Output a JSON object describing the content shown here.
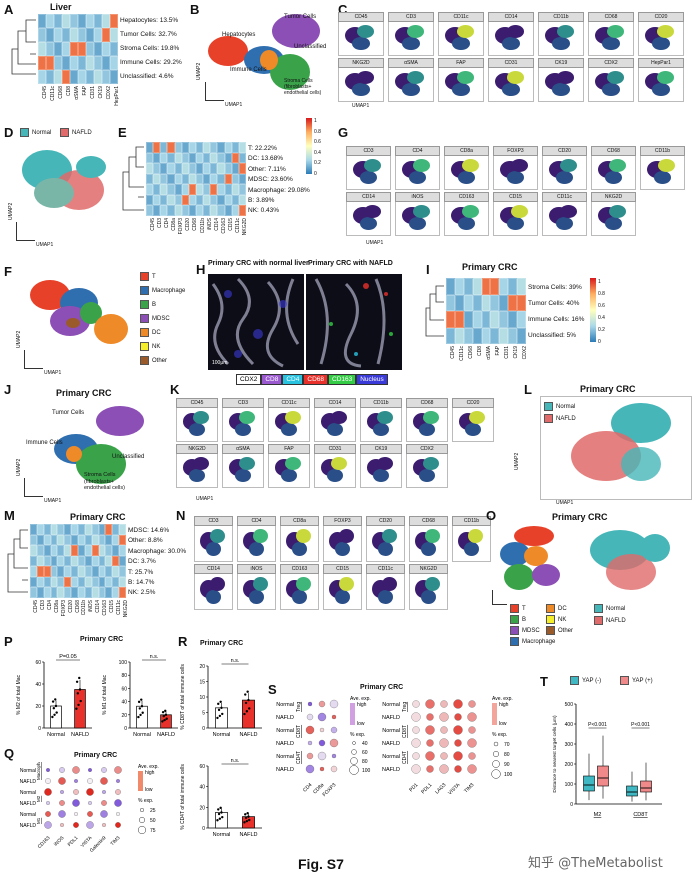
{
  "panelA": {
    "label": "A",
    "title": "Liver",
    "annotations": [
      "Hepatocytes: 13.5%",
      "Tumor Cells: 32.7%",
      "Stroma Cells: 19.8%",
      "Immune Cells: 29.2%",
      "Unclassified: 4.6%"
    ],
    "markers": [
      "CD45",
      "CD11c",
      "CD68",
      "CD8",
      "αSMA",
      "FAP",
      "CD31",
      "CK19",
      "CDX2",
      "HepPar1"
    ]
  },
  "panelB": {
    "label": "B",
    "labels": [
      "Tumor Cells",
      "Hepatocytes",
      "Unclassified",
      "Immune Cells",
      "Stroma Cells\n(fibroblasts+\nendothelial cells)"
    ],
    "xaxis": "UMAP1",
    "yaxis": "UMAP2"
  },
  "panelC": {
    "label": "C",
    "tiles": [
      "CD45",
      "CD3",
      "CD11c",
      "CD14",
      "CD11b",
      "CD68",
      "CD20",
      "NKG2D",
      "αSMA",
      "FAP",
      "CD31",
      "CK19",
      "CDX2",
      "HepPar1"
    ],
    "xaxis": "UMAP1",
    "yaxis": "UMAP2"
  },
  "panelD": {
    "label": "D",
    "legend": [
      "Normal",
      "NAFLD"
    ],
    "xaxis": "UMAP1",
    "yaxis": "UMAP2",
    "colors": {
      "normal": "#46b6b8",
      "nafld": "#e16a6a"
    }
  },
  "panelE": {
    "label": "E",
    "annotations": [
      "T: 22.22%",
      "DC: 13.68%",
      "Other: 7.11%",
      "MDSC: 23.60%",
      "Macrophage: 29.08%",
      "B: 3.89%",
      "NK: 0.43%"
    ],
    "markers": [
      "CD45",
      "CD3",
      "CD4",
      "CD8a",
      "FOXP3",
      "CD20",
      "CD68",
      "CD11b",
      "iNOS",
      "CD14",
      "CD163",
      "CD15",
      "CD11c",
      "NKG2D"
    ],
    "colorbar": [
      "1",
      "0.8",
      "0.6",
      "0.4",
      "0.2",
      "0"
    ]
  },
  "panelF": {
    "label": "F",
    "legend": [
      {
        "name": "T",
        "color": "#e8412a"
      },
      {
        "name": "Macrophage",
        "color": "#2f6fb0"
      },
      {
        "name": "B",
        "color": "#3aa34a"
      },
      {
        "name": "MDSC",
        "color": "#8c4fb5"
      },
      {
        "name": "DC",
        "color": "#ef8a28"
      },
      {
        "name": "NK",
        "color": "#f5ee2a"
      },
      {
        "name": "Other",
        "color": "#9b5a2a"
      }
    ],
    "xaxis": "UMAP1",
    "yaxis": "UMAP2"
  },
  "panelG": {
    "label": "G",
    "tiles": [
      "CD3",
      "CD4",
      "CD8a",
      "FOXP3",
      "CD20",
      "CD68",
      "CD11b",
      "CD14",
      "iNOS",
      "CD163",
      "CD15",
      "CD11c",
      "NKG2D"
    ],
    "xaxis": "UMAP1",
    "yaxis": "UMAP2"
  },
  "panelH": {
    "label": "H",
    "left_title": "Primary CRC with normal liver",
    "right_title": "Primary CRC with NAFLD",
    "scale": "100μm",
    "legend": [
      {
        "name": "CDX2",
        "color": "#ffffff"
      },
      {
        "name": "CD8",
        "color": "#9b59d0"
      },
      {
        "name": "CD4",
        "color": "#29c3e0"
      },
      {
        "name": "CD68",
        "color": "#e8312a"
      },
      {
        "name": "CD163",
        "color": "#33cc44"
      },
      {
        "name": "Nucleus",
        "color": "#3a3ad8"
      }
    ]
  },
  "panelI": {
    "label": "I",
    "title": "Primary CRC",
    "annotations": [
      "Stroma Cells: 39%",
      "Tumor Cells: 40%",
      "Immune Cells: 16%",
      "Unclassified: 5%"
    ],
    "markers": [
      "CD45",
      "CD11c",
      "CD68",
      "CD8",
      "αSMA",
      "FAP",
      "CD31",
      "CK19",
      "CDX2"
    ],
    "colorbar": [
      "1",
      "0.8",
      "0.6",
      "0.4",
      "0.2",
      "0"
    ]
  },
  "panelJ": {
    "label": "J",
    "title": "Primary CRC",
    "labels": [
      "Tumor Cells",
      "Immune Cells",
      "Unclassified",
      "Stroma Cells\n(fibroblasts+\nendothelial cells)"
    ],
    "xaxis": "UMAP1",
    "yaxis": "UMAP2"
  },
  "panelK": {
    "label": "K",
    "tiles": [
      "CD45",
      "CD3",
      "CD11c",
      "CD14",
      "CD11b",
      "CD68",
      "CD20",
      "NKG2D",
      "αSMA",
      "FAP",
      "CD31",
      "CK19",
      "CDX2"
    ],
    "xaxis": "UMAP1",
    "yaxis": "UMAP2"
  },
  "panelL": {
    "label": "L",
    "title": "Primary CRC",
    "legend": [
      "Normal",
      "NAFLD"
    ],
    "xaxis": "UMAP1",
    "yaxis": "UMAP2"
  },
  "panelM": {
    "label": "M",
    "title": "Primary CRC",
    "annotations": [
      "MDSC: 14.6%",
      "Other: 8.8%",
      "Macrophage: 30.0%",
      "DC: 3.7%",
      "T: 25.7%",
      "B: 14.7%",
      "NK: 2.5%"
    ],
    "markers": [
      "CD45",
      "CD3",
      "CD4",
      "CD8a",
      "FOXP3",
      "CD20",
      "CD68",
      "CD11b",
      "iNOS",
      "CD14",
      "CD163",
      "CD15",
      "CD11c",
      "NKG2D"
    ]
  },
  "panelN": {
    "label": "N",
    "tiles": [
      "CD3",
      "CD4",
      "CD8a",
      "FOXP3",
      "CD20",
      "CD68",
      "CD11b",
      "CD14",
      "iNOS",
      "CD163",
      "CD15",
      "CD11c",
      "NKG2D"
    ]
  },
  "panelO": {
    "label": "O",
    "title": "Primary CRC",
    "legend_left": [
      {
        "name": "T",
        "color": "#e8412a"
      },
      {
        "name": "DC",
        "color": "#ef8a28"
      },
      {
        "name": "B",
        "color": "#3aa34a"
      },
      {
        "name": "NK",
        "color": "#f5ee2a"
      },
      {
        "name": "MDSC",
        "color": "#8c4fb5"
      },
      {
        "name": "Other",
        "color": "#9b5a2a"
      },
      {
        "name": "Macrophage",
        "color": "#2f6fb0"
      }
    ],
    "legend_right": [
      "Normal",
      "NAFLD"
    ]
  },
  "panelP": {
    "label": "P",
    "title": "Primary CRC",
    "chart_data": [
      {
        "type": "bar",
        "categories": [
          "Normal",
          "NAFLD"
        ],
        "values": [
          20,
          35
        ],
        "ylabel": "% M2 of total Mac",
        "ylim": [
          0,
          60
        ],
        "yticks": [
          "0",
          "20",
          "40",
          "60"
        ],
        "pvalue": "P=0.05"
      },
      {
        "type": "bar",
        "categories": [
          "Normal",
          "NAFLD"
        ],
        "values": [
          33,
          20
        ],
        "ylabel": "% M1 of total Mac",
        "ylim": [
          0,
          100
        ],
        "yticks": [
          "0",
          "20",
          "40",
          "60",
          "80",
          "100"
        ],
        "pvalue": "n.s."
      }
    ]
  },
  "panelR": {
    "label": "R",
    "title": "Primary CRC",
    "chart_data": [
      {
        "type": "bar",
        "categories": [
          "Normal",
          "NAFLD"
        ],
        "values": [
          6.5,
          9
        ],
        "ylabel": "% CD8T of total immune cells",
        "ylim": [
          0,
          20
        ],
        "yticks": [
          "0",
          "5",
          "10",
          "15",
          "20"
        ],
        "pvalue": "n.s."
      },
      {
        "type": "bar",
        "categories": [
          "Normal",
          "NAFLD"
        ],
        "values": [
          15,
          11
        ],
        "ylabel": "% CD4T of total immune cells",
        "ylim": [
          0,
          60
        ],
        "yticks": [
          "0",
          "20",
          "40",
          "60"
        ],
        "pvalue": "n.s."
      }
    ]
  },
  "panelS": {
    "label": "S",
    "title": "Primary CRC",
    "rows_left": [
      "Normal",
      "NAFLD",
      "Normal",
      "NAFLD",
      "Normal",
      "NAFLD"
    ],
    "groups": [
      "Treg",
      "CD8T",
      "CD4T"
    ],
    "cols_left": [
      "CD4",
      "CD8a",
      "FOXP3"
    ],
    "cols_right": [
      "PD1",
      "PDL1",
      "LAG3",
      "VISTA",
      "TIM3"
    ],
    "legend": {
      "ave": "Ave. exp.",
      "high": "high",
      "low": "low",
      "pexp": "% exp.",
      "left_sizes": [
        "40",
        "60",
        "80",
        "100"
      ],
      "right_sizes": [
        "70",
        "80",
        "90",
        "100"
      ]
    }
  },
  "panelQ": {
    "label": "Q",
    "title": "Primary CRC",
    "rows": [
      "Normal",
      "NAFLD",
      "Normal",
      "NAFLD",
      "Normal",
      "NAFLD"
    ],
    "groups": [
      "Macrophage",
      "M2",
      "M1"
    ],
    "cols": [
      "CD163",
      "iNOS",
      "PDL1",
      "VISTA",
      "Galectin9",
      "TIM3"
    ],
    "legend": {
      "ave": "Ave. exp.",
      "high": "high",
      "low": "low",
      "pexp": "% exp.",
      "sizes": [
        "25",
        "50",
        "75"
      ]
    }
  },
  "panelT": {
    "label": "T",
    "legend": [
      "YAP (-)",
      "YAP (+)"
    ],
    "ylabel": "Distance to nearest target cells (μm)",
    "yticks": [
      "0",
      "100",
      "200",
      "300",
      "400",
      "500"
    ],
    "pvalues": [
      "P<0.001",
      "P<0.001"
    ],
    "chart_data": {
      "type": "box",
      "categories": [
        "M2",
        "CD8T"
      ],
      "series": [
        {
          "name": "YAP (-)",
          "median": [
            95,
            60
          ],
          "q1": [
            65,
            40
          ],
          "q3": [
            140,
            90
          ]
        },
        {
          "name": "YAP (+)",
          "median": [
            130,
            80
          ],
          "q1": [
            90,
            60
          ],
          "q3": [
            190,
            115
          ]
        }
      ],
      "ylim": [
        0,
        500
      ]
    }
  },
  "caption": "Fig. S7",
  "watermark": "知乎 @TheMetabolist"
}
